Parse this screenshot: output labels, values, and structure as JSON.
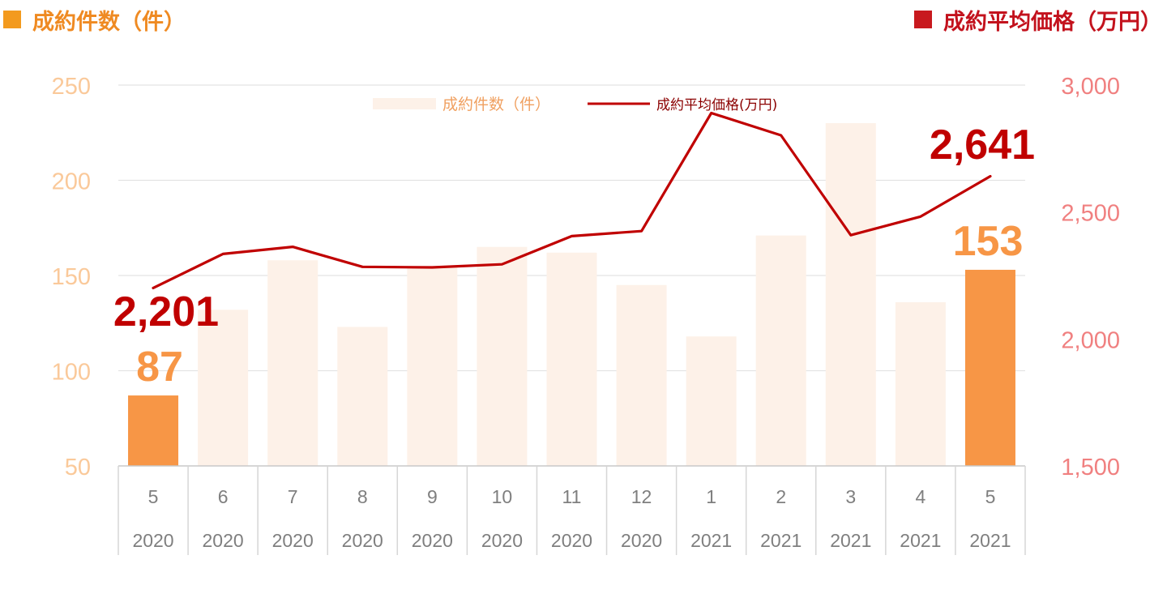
{
  "header": {
    "left_title": "成約件数（件）",
    "right_title": "成約平均価格（万円）",
    "left_color": "#f39a1e",
    "right_color": "#c8191e"
  },
  "chart_data": {
    "type": "bar",
    "categories": [
      {
        "month": "5",
        "year": "2020"
      },
      {
        "month": "6",
        "year": "2020"
      },
      {
        "month": "7",
        "year": "2020"
      },
      {
        "month": "8",
        "year": "2020"
      },
      {
        "month": "9",
        "year": "2020"
      },
      {
        "month": "10",
        "year": "2020"
      },
      {
        "month": "11",
        "year": "2020"
      },
      {
        "month": "12",
        "year": "2020"
      },
      {
        "month": "1",
        "year": "2021"
      },
      {
        "month": "2",
        "year": "2021"
      },
      {
        "month": "3",
        "year": "2021"
      },
      {
        "month": "4",
        "year": "2021"
      },
      {
        "month": "5",
        "year": "2021"
      }
    ],
    "series": [
      {
        "name": "成約件数（件）",
        "kind": "bar",
        "axis": "left",
        "values": [
          87,
          132,
          158,
          123,
          155,
          165,
          162,
          145,
          118,
          171,
          230,
          136,
          153
        ],
        "highlight_index": [
          0,
          12
        ],
        "color": "#f79646",
        "faded_color": "#fdf1e8"
      },
      {
        "name": "成約平均価格(万円)",
        "kind": "line",
        "axis": "right",
        "values": [
          2201,
          2335,
          2363,
          2284,
          2282,
          2294,
          2405,
          2425,
          2890,
          2802,
          2409,
          2482,
          2641
        ],
        "color": "#c00000"
      }
    ],
    "left_axis": {
      "min": 50,
      "max": 250,
      "ticks": [
        "50",
        "100",
        "150",
        "200",
        "250"
      ],
      "color": "#fac99a"
    },
    "right_axis": {
      "min": 1500,
      "max": 3000,
      "ticks": [
        "1,500",
        "2,000",
        "2,500",
        "3,000"
      ],
      "color": "#f08080"
    },
    "annotations": {
      "first_price": "2,201",
      "last_price": "2,641",
      "first_count": "87",
      "last_count": "153"
    },
    "grid": true,
    "legend_position": "top-center"
  }
}
